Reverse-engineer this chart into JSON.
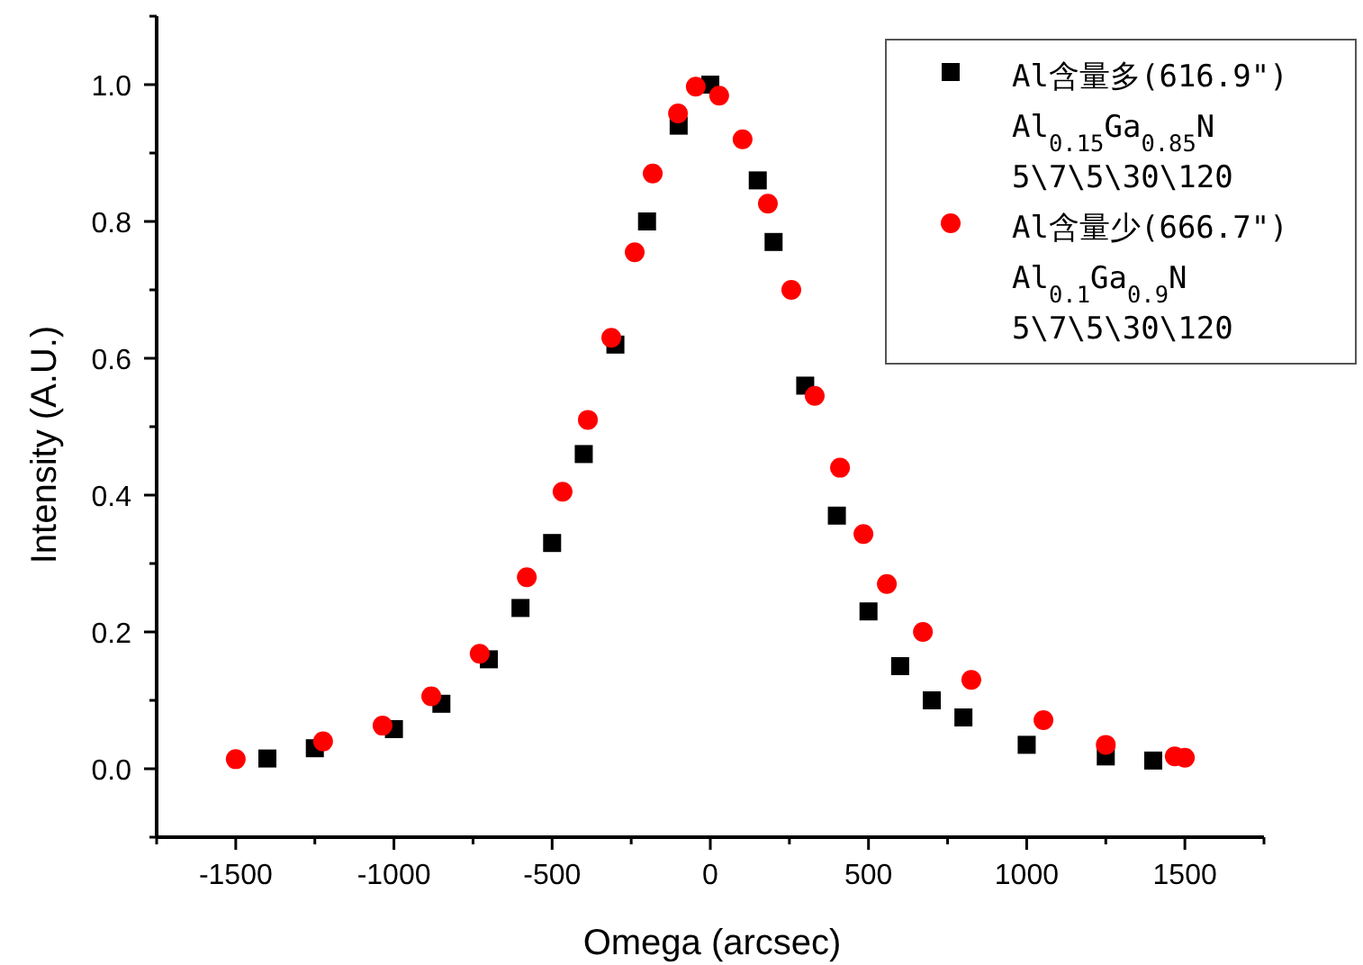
{
  "chart_data": {
    "type": "scatter",
    "xlabel": "Omega (arcsec)",
    "ylabel": "Intensity (A.U.)",
    "xlim": [
      -1750,
      1750
    ],
    "ylim": [
      -0.1,
      1.1
    ],
    "xticks": [
      {
        "value": -1750,
        "label": null
      },
      -1500,
      {
        "value": -1250,
        "label": null
      },
      -1000,
      {
        "value": -750,
        "label": null
      },
      -500,
      {
        "value": -250,
        "label": null
      },
      0,
      {
        "value": 250,
        "label": null
      },
      500,
      {
        "value": 750,
        "label": null
      },
      1000,
      {
        "value": 1250,
        "label": null
      },
      1500,
      {
        "value": 1750,
        "label": null
      }
    ],
    "yticks": [
      {
        "value": -0.1,
        "label": null
      },
      {
        "value": 0,
        "label": "0.0"
      },
      {
        "value": 0.1,
        "label": null
      },
      {
        "value": 0.2,
        "label": "0.2"
      },
      {
        "value": 0.3,
        "label": null
      },
      {
        "value": 0.4,
        "label": "0.4"
      },
      {
        "value": 0.5,
        "label": null
      },
      {
        "value": 0.6,
        "label": "0.6"
      },
      {
        "value": 0.7,
        "label": null
      },
      {
        "value": 0.8,
        "label": "0.8"
      },
      {
        "value": 0.9,
        "label": null
      },
      {
        "value": 1.0,
        "label": "1.0"
      },
      {
        "value": 1.1,
        "label": null
      }
    ],
    "legend": "top right",
    "grid": false,
    "series": [
      {
        "name": "Al含量多(616.9\")\nAl$_{0.15}$Ga$_{0.85}$N\n5\\7\\5\\30\\120",
        "color": "#000000",
        "marker": "square",
        "x": [
          -1400,
          -1250,
          -1000,
          -850,
          -700,
          -600,
          -500,
          -400,
          -300,
          -200,
          -100,
          0,
          150,
          200,
          300,
          400,
          500,
          600,
          700,
          800,
          1000,
          1250,
          1400
        ],
        "values": [
          0.015,
          0.03,
          0.058,
          0.095,
          0.16,
          0.235,
          0.33,
          0.46,
          0.62,
          0.8,
          0.94,
          1.0,
          0.86,
          0.77,
          0.56,
          0.37,
          0.23,
          0.15,
          0.1,
          0.075,
          0.035,
          0.018,
          0.012
        ]
      },
      {
        "name": "Al含量少(666.7\")\nAl$_{0.1}$Ga$_{0.9}$N\n5\\7\\5\\30\\120",
        "color": "#ff0000",
        "marker": "circle",
        "x": [
          -1500,
          -1224,
          -1036,
          -882,
          -729,
          -580,
          -467,
          -387,
          -313,
          -239,
          -182,
          -102,
          -46,
          28,
          102,
          182,
          256,
          330,
          410,
          484,
          558,
          672,
          825,
          1053,
          1250,
          1468,
          1500
        ],
        "values": [
          0.014,
          0.04,
          0.063,
          0.106,
          0.168,
          0.28,
          0.405,
          0.51,
          0.63,
          0.755,
          0.87,
          0.958,
          0.997,
          0.984,
          0.92,
          0.826,
          0.7,
          0.545,
          0.44,
          0.343,
          0.27,
          0.2,
          0.13,
          0.071,
          0.035,
          0.018,
          0.016
        ]
      }
    ]
  }
}
